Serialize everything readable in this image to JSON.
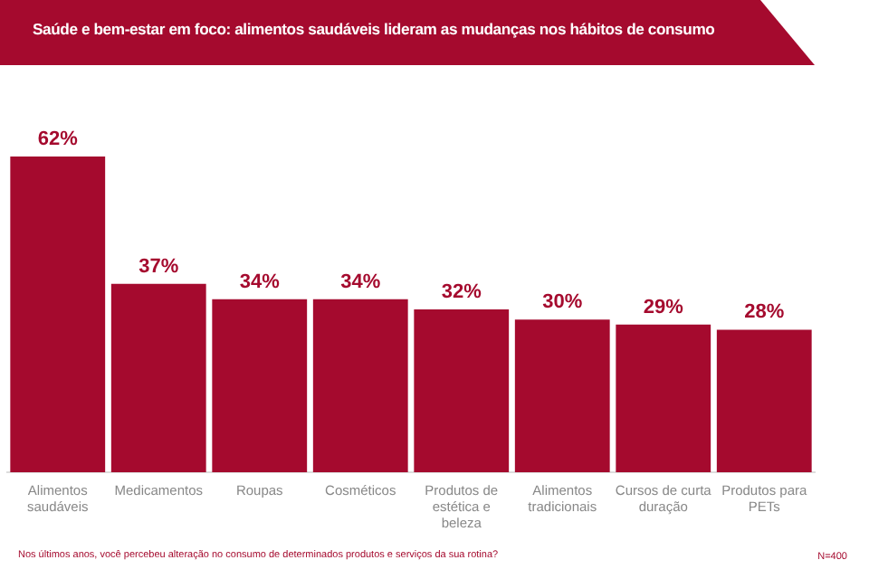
{
  "chart_data": {
    "type": "bar",
    "title": "Saúde e bem-estar em foco: alimentos saudáveis lideram as mudanças nos hábitos de consumo",
    "categories": [
      "Alimentos saudáveis",
      "Medicamentos",
      "Roupas",
      "Cosméticos",
      "Produtos de estética e beleza",
      "Alimentos tradicionais",
      "Cursos de curta duração",
      "Produtos para PETs"
    ],
    "values": [
      62,
      37,
      34,
      34,
      32,
      30,
      29,
      28
    ],
    "color": "#a50a2e",
    "value_labels": [
      "62%",
      "37%",
      "34%",
      "34%",
      "32%",
      "30%",
      "29%",
      "28%"
    ],
    "tick_labels": "x",
    "grid": false,
    "legend": false,
    "annotations": [
      "Nos últimos anos, você percebeu alteração no consumo de determinados produtos e serviços da sua rotina?",
      "N=400"
    ]
  }
}
